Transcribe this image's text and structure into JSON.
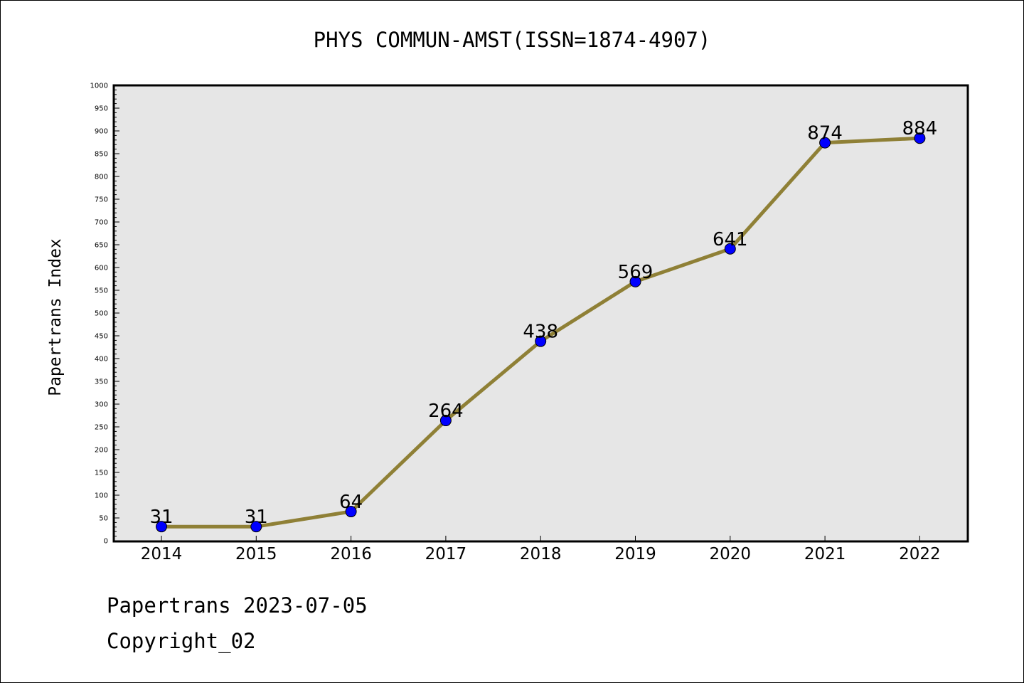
{
  "chart_data": {
    "type": "line",
    "title": "PHYS COMMUN-AMST(ISSN=1874-4907)",
    "xlabel": "",
    "ylabel": "Papertrans Index",
    "categories": [
      "2014",
      "2015",
      "2016",
      "2017",
      "2018",
      "2019",
      "2020",
      "2021",
      "2022"
    ],
    "series": [
      {
        "values": [
          31,
          31,
          64,
          264,
          438,
          569,
          641,
          874,
          884
        ]
      }
    ],
    "data_labels": [
      "31",
      "31",
      "64",
      "264",
      "438",
      "569",
      "641",
      "874",
      "884"
    ],
    "ylim": [
      0,
      1000
    ],
    "y_ticks": [
      0,
      50,
      100,
      150,
      200,
      250,
      300,
      350,
      400,
      450,
      500,
      550,
      600,
      650,
      700,
      750,
      800,
      850,
      900,
      950,
      1000
    ],
    "grid": false,
    "legend": "none",
    "colors": {
      "line": "#8f8036",
      "marker": "#0000ff",
      "plot_background": "#e6e6e6",
      "axis": "#000000"
    }
  },
  "footer": {
    "date_line": "Papertrans 2023-07-05",
    "copyright": "Copyright_02"
  }
}
